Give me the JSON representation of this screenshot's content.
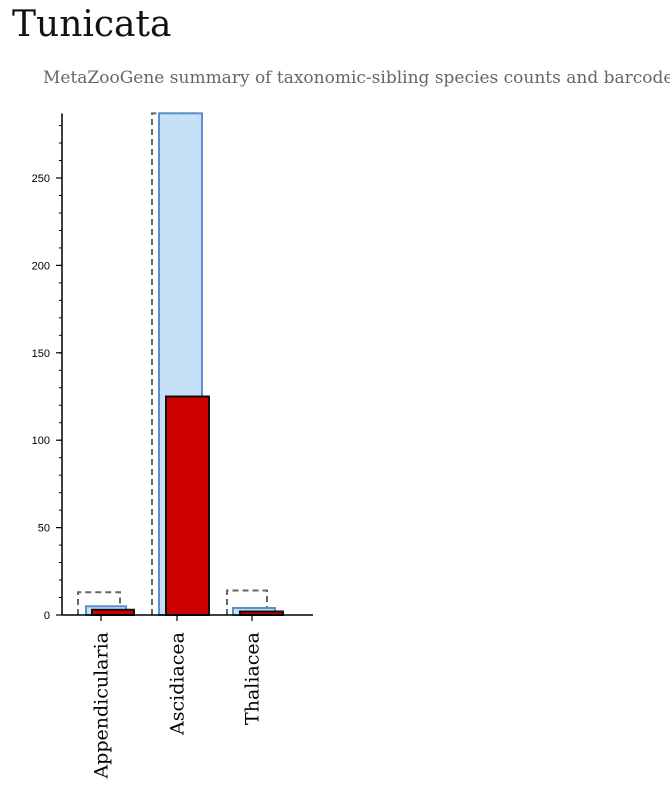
{
  "page": {
    "title": "Tunicata",
    "subtitle": "MetaZooGene summary of taxonomic-sibling species counts and barcodes."
  },
  "colors": {
    "species_fill": "#c6e0f8",
    "species_stroke": "#5b8fcc",
    "barcode_fill": "#cc0000",
    "barcode_stroke": "#111111",
    "outline_stroke": "#666666",
    "axis": "#000000"
  },
  "chart_data": {
    "type": "bar",
    "title": "",
    "xlabel": "",
    "ylabel": "",
    "ylim": [
      0,
      287
    ],
    "yticks": [
      0,
      50,
      100,
      150,
      200,
      250
    ],
    "y_minor_step": 10,
    "categories": [
      "Appendicularia",
      "Ascidiacea",
      "Thaliacea"
    ],
    "series": [
      {
        "values": [
          13,
          287,
          14
        ]
      },
      {
        "values": [
          5,
          287,
          4
        ]
      },
      {
        "values": [
          3,
          125,
          2
        ]
      }
    ],
    "grid": false,
    "legend": "none"
  }
}
